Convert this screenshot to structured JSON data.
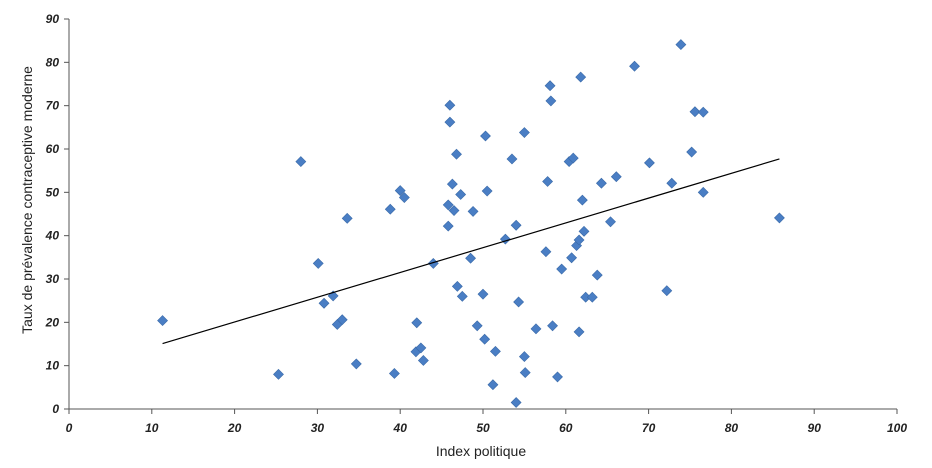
{
  "colors": {
    "marker": "#4a7ec4",
    "marker_stroke": "#3a6aa8",
    "trend": "#000000",
    "axis": "#555555",
    "text": "#222222"
  },
  "title_fragment": "",
  "chart_data": {
    "type": "scatter",
    "title": "",
    "xlabel": "Index politique",
    "ylabel": "Taux de prévalence contraceptive moderne",
    "xlim": [
      0,
      100
    ],
    "ylim": [
      0,
      90
    ],
    "x_ticks": [
      "0",
      "10",
      "20",
      "30",
      "40",
      "50",
      "60",
      "70",
      "80",
      "90",
      "100"
    ],
    "y_ticks": [
      "0",
      "10",
      "20",
      "30",
      "40",
      "50",
      "60",
      "70",
      "80",
      "90"
    ],
    "grid": false,
    "legend": "none",
    "points": [
      [
        11.3,
        20.4
      ],
      [
        25.3,
        8.0
      ],
      [
        28.0,
        57.1
      ],
      [
        30.1,
        33.6
      ],
      [
        30.8,
        24.4
      ],
      [
        31.9,
        26.1
      ],
      [
        32.4,
        19.5
      ],
      [
        33.0,
        20.6
      ],
      [
        33.6,
        44.0
      ],
      [
        34.7,
        10.4
      ],
      [
        38.8,
        46.1
      ],
      [
        39.3,
        8.2
      ],
      [
        40.0,
        50.4
      ],
      [
        40.5,
        48.8
      ],
      [
        41.9,
        13.2
      ],
      [
        42.0,
        19.9
      ],
      [
        42.5,
        14.1
      ],
      [
        42.8,
        11.2
      ],
      [
        44.0,
        33.6
      ],
      [
        45.8,
        47.1
      ],
      [
        45.8,
        42.2
      ],
      [
        46.0,
        70.1
      ],
      [
        46.0,
        66.2
      ],
      [
        46.3,
        51.9
      ],
      [
        46.5,
        45.8
      ],
      [
        46.8,
        58.8
      ],
      [
        46.9,
        28.3
      ],
      [
        47.3,
        49.5
      ],
      [
        47.5,
        26.0
      ],
      [
        48.5,
        34.8
      ],
      [
        48.8,
        45.6
      ],
      [
        49.3,
        19.2
      ],
      [
        50.0,
        26.5
      ],
      [
        50.2,
        16.1
      ],
      [
        50.3,
        63.0
      ],
      [
        50.5,
        50.3
      ],
      [
        51.2,
        5.6
      ],
      [
        51.5,
        13.3
      ],
      [
        52.7,
        39.2
      ],
      [
        53.5,
        57.7
      ],
      [
        54.0,
        42.4
      ],
      [
        54.0,
        1.5
      ],
      [
        54.3,
        24.7
      ],
      [
        55.0,
        63.8
      ],
      [
        55.0,
        12.1
      ],
      [
        55.1,
        8.4
      ],
      [
        56.4,
        18.5
      ],
      [
        57.6,
        36.3
      ],
      [
        57.8,
        52.5
      ],
      [
        58.1,
        74.6
      ],
      [
        58.2,
        71.1
      ],
      [
        58.4,
        19.2
      ],
      [
        59.0,
        7.4
      ],
      [
        59.5,
        32.3
      ],
      [
        60.4,
        57.1
      ],
      [
        60.7,
        34.9
      ],
      [
        60.9,
        57.9
      ],
      [
        61.3,
        37.7
      ],
      [
        61.6,
        39.0
      ],
      [
        61.6,
        17.8
      ],
      [
        61.8,
        76.6
      ],
      [
        62.0,
        48.2
      ],
      [
        62.2,
        41.0
      ],
      [
        62.4,
        25.8
      ],
      [
        63.2,
        25.8
      ],
      [
        63.8,
        30.9
      ],
      [
        64.3,
        52.1
      ],
      [
        65.4,
        43.2
      ],
      [
        66.1,
        53.6
      ],
      [
        68.3,
        79.1
      ],
      [
        70.1,
        56.8
      ],
      [
        72.2,
        27.3
      ],
      [
        72.8,
        52.1
      ],
      [
        73.9,
        84.1
      ],
      [
        75.2,
        59.3
      ],
      [
        75.6,
        68.6
      ],
      [
        76.6,
        68.5
      ],
      [
        76.6,
        50.0
      ],
      [
        85.8,
        44.1
      ]
    ],
    "trendline": {
      "x": [
        11.3,
        85.8
      ],
      "y": [
        15.1,
        57.7
      ]
    }
  }
}
